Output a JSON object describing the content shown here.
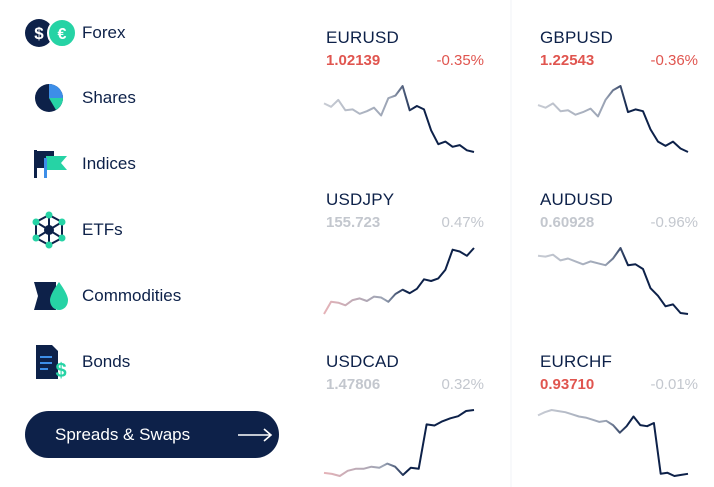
{
  "sidebar": {
    "items": [
      {
        "label": "Forex",
        "icon": "forex-icon"
      },
      {
        "label": "Shares",
        "icon": "pie-chart-icon"
      },
      {
        "label": "Indices",
        "icon": "flags-icon"
      },
      {
        "label": "ETFs",
        "icon": "network-icon"
      },
      {
        "label": "Commodities",
        "icon": "oil-drop-icon"
      },
      {
        "label": "Bonds",
        "icon": "bond-document-icon"
      }
    ],
    "cta_label": "Spreads & Swaps",
    "cta_icon": "arrow-right-icon"
  },
  "colors": {
    "navy": "#0d2149",
    "teal": "#26d3a5",
    "blue": "#3d8ee8",
    "negative": "#e0554f",
    "muted": "#c3c7ce"
  },
  "instruments": [
    {
      "symbol": "EURUSD",
      "price": "1.02139",
      "change": "-0.35%",
      "state": "negative",
      "trend": [
        6,
        5.6,
        6.4,
        5.2,
        5.3,
        4.8,
        5.1,
        5.5,
        4.6,
        6.6,
        6.9,
        8,
        5.2,
        5.7,
        5.3,
        2.9,
        1.3,
        1.6,
        1,
        1.2,
        0.6,
        0.4
      ]
    },
    {
      "symbol": "GBPUSD",
      "price": "1.22543",
      "change": "-0.36%",
      "state": "negative",
      "trend": [
        5.8,
        5.5,
        6,
        5.1,
        5.2,
        4.7,
        5.0,
        5.4,
        4.5,
        6.4,
        7.5,
        8,
        5.0,
        5.3,
        5.1,
        3.0,
        1.6,
        1.1,
        1.6,
        0.8,
        0.4
      ]
    },
    {
      "symbol": "USDJPY",
      "price": "155.723",
      "change": "0.47%",
      "state": "neutral",
      "trend": [
        0.2,
        1.6,
        1.5,
        1.2,
        1.8,
        2.0,
        1.7,
        2.2,
        2.1,
        1.6,
        2.5,
        3.0,
        2.6,
        3.1,
        4.2,
        4.0,
        4.3,
        5.3,
        7.6,
        7.4,
        6.9,
        7.8
      ]
    },
    {
      "symbol": "AUDUSD",
      "price": "0.60928",
      "change": "-0.96%",
      "state": "neutral",
      "trend": [
        6.5,
        6.4,
        6.6,
        6.0,
        6.2,
        5.9,
        5.6,
        5.9,
        5.7,
        5.5,
        6.2,
        7.3,
        5.5,
        5.6,
        5.1,
        3.1,
        2.3,
        1.2,
        1.4,
        0.5,
        0.4
      ]
    },
    {
      "symbol": "USDCAD",
      "price": "1.47806",
      "change": "0.32%",
      "state": "neutral",
      "trend": [
        0.6,
        0.5,
        0.3,
        0.8,
        1.0,
        1.0,
        1.2,
        1.1,
        1.5,
        1.2,
        0.4,
        1.1,
        1.0,
        5.3,
        5.2,
        5.6,
        5.9,
        6.1,
        6.6,
        6.7
      ]
    },
    {
      "symbol": "EURCHF",
      "price": "0.93710",
      "change": "-0.01%",
      "state": "negative",
      "trend": [
        6.4,
        6.7,
        6.9,
        6.8,
        6.7,
        6.5,
        6.3,
        6.2,
        6.0,
        5.8,
        5.9,
        5.5,
        4.8,
        5.4,
        6.3,
        5.5,
        5.4,
        5.7,
        1.0,
        1.1,
        0.8,
        0.9,
        1.0
      ]
    }
  ]
}
